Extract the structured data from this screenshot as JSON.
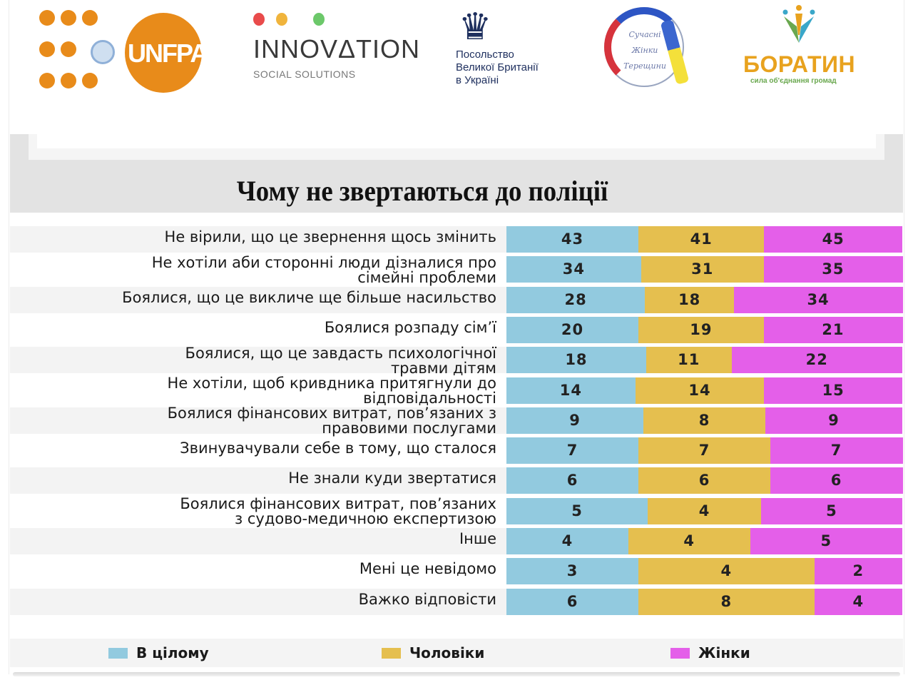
{
  "logos": {
    "unfpa": {
      "name": "UNFPA"
    },
    "innovation": {
      "title": "INNOVΔTION",
      "subtitle": "SOCIAL SOLUTIONS",
      "dot_colors": [
        "#e94b4b",
        "#f0b43c",
        "#6cc86a"
      ]
    },
    "embassy": {
      "text": "Посольство\nВеликої Британії\nв Україні"
    },
    "wreath": {
      "text": "Сучасні\nЖінки\nТерещини"
    },
    "boratyn": {
      "title": "БОРАТИН",
      "subtitle": "сила об'єднання громад"
    }
  },
  "chart_data": {
    "type": "bar",
    "orientation": "horizontal",
    "stacking": "100% stacked (each row normalized to its own total)",
    "title": "Чому не звертаються до поліції",
    "xlabel": "",
    "ylabel": "",
    "grid": false,
    "legend_position": "bottom",
    "categories": [
      "Не вірили, що це звернення щось змінить",
      "Не хотіли аби сторонні люди дізналися про\nсімейні проблеми",
      "Боялися, що це викличе ще більше насильство",
      "Боялися розпаду сім’ї",
      "Боялися, що це завдасть психологічної\nтравми дітям",
      "Не хотіли, щоб кривдника притягнули до\nвідповідальності",
      "Боялися фінансових витрат, пов’язаних з\nправовими послугами",
      "Звинувачували себе в тому, що сталося",
      "Не знали куди звертатися",
      "Боялися фінансових витрат, пов’язаних\nз судово-медичною експертизою",
      "Інше",
      "Мені це невідомо",
      "Важко відповісти"
    ],
    "series": [
      {
        "name": "В цілому",
        "color": "#92cadf",
        "values": [
          43,
          34,
          28,
          20,
          18,
          14,
          9,
          7,
          6,
          5,
          4,
          3,
          6
        ]
      },
      {
        "name": "Чоловіки",
        "color": "#e5bf4f",
        "values": [
          41,
          31,
          18,
          19,
          11,
          14,
          8,
          7,
          6,
          4,
          4,
          4,
          8
        ]
      },
      {
        "name": "Жінки",
        "color": "#e45fe9",
        "values": [
          45,
          35,
          34,
          21,
          22,
          15,
          9,
          7,
          6,
          5,
          5,
          2,
          4
        ]
      }
    ]
  }
}
